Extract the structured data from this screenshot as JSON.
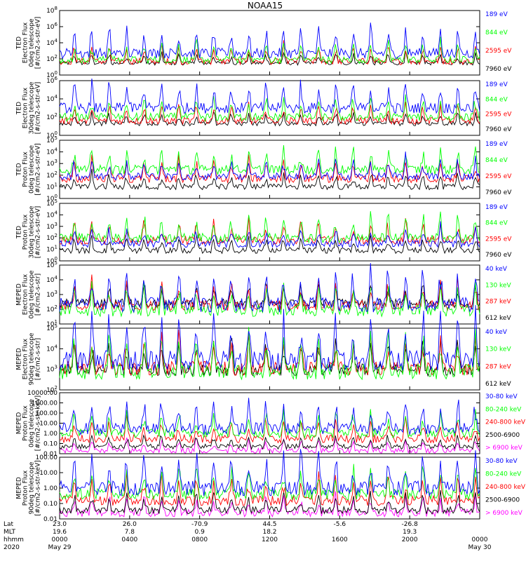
{
  "title": "NOAA15",
  "colors": {
    "blue": "#0000ff",
    "red": "#ff0000",
    "green": "#00ff00",
    "black": "#000000",
    "magenta": "#ff00ff"
  },
  "chart_data": [
    {
      "type": "line",
      "ylabel": [
        "TED",
        "Electron Flux",
        "0deg telescope",
        "[#/cm2-s-str-eV]"
      ],
      "ylim": [
        1,
        100000000
      ],
      "yscale": "log",
      "ytick_labels": [
        "10^8",
        "10^6",
        "10^4",
        "10^2",
        "10^0"
      ],
      "series": [
        {
          "name": "7960 eV",
          "color": "#000000",
          "baseline": 30,
          "level": 1.0
        },
        {
          "name": "2595 eV",
          "color": "#ff0000",
          "baseline": 50,
          "level": 1.6
        },
        {
          "name": "844 eV",
          "color": "#00ff00",
          "baseline": 80,
          "level": 1.8
        },
        {
          "name": "189 eV",
          "color": "#0000ff",
          "baseline": 500,
          "level": 2.6
        }
      ]
    },
    {
      "type": "line",
      "ylabel": [
        "TED",
        "Electron Flux",
        "30deg telescope",
        "[#/cm2-s-str-eV]"
      ],
      "ylim": [
        1,
        1000000
      ],
      "yscale": "log",
      "ytick_labels": [
        "10^6",
        "10^4",
        "10^2",
        "10^0"
      ],
      "series": [
        {
          "name": "7960 eV",
          "color": "#000000",
          "baseline": 20,
          "level": 1.0
        },
        {
          "name": "2595 eV",
          "color": "#ff0000",
          "baseline": 40,
          "level": 1.5
        },
        {
          "name": "844 eV",
          "color": "#00ff00",
          "baseline": 100,
          "level": 1.8
        },
        {
          "name": "189 eV",
          "color": "#0000ff",
          "baseline": 1000,
          "level": 2.4
        }
      ]
    },
    {
      "type": "line",
      "ylabel": [
        "TED",
        "Proton Flux",
        "0deg telescope",
        "[#/cm2-s-str-eV]"
      ],
      "ylim": [
        1,
        100000
      ],
      "yscale": "log",
      "ytick_labels": [
        "10^5",
        "10^4",
        "10^3",
        "10^2",
        "10^1",
        "10^0"
      ],
      "series": [
        {
          "name": "7960 eV",
          "color": "#000000",
          "baseline": 10,
          "level": 1.0
        },
        {
          "name": "2595 eV",
          "color": "#ff0000",
          "baseline": 50,
          "level": 1.4
        },
        {
          "name": "844 eV",
          "color": "#00ff00",
          "baseline": 300,
          "level": 1.6
        },
        {
          "name": "189 eV",
          "color": "#0000ff",
          "baseline": 80,
          "level": 1.3
        }
      ]
    },
    {
      "type": "line",
      "ylabel": [
        "TED",
        "Proton Flux",
        "30deg telescope",
        "[#/cm2-s-str-eV]"
      ],
      "ylim": [
        1,
        100000
      ],
      "yscale": "log",
      "ytick_labels": [
        "10^5",
        "10^4",
        "10^3",
        "10^2",
        "10^1",
        "10^0"
      ],
      "series": [
        {
          "name": "7960 eV",
          "color": "#000000",
          "baseline": 8,
          "level": 1.0
        },
        {
          "name": "2595 eV",
          "color": "#ff0000",
          "baseline": 60,
          "level": 1.4
        },
        {
          "name": "844 eV",
          "color": "#00ff00",
          "baseline": 100,
          "level": 1.6
        },
        {
          "name": "189 eV",
          "color": "#0000ff",
          "baseline": 30,
          "level": 1.2
        }
      ]
    },
    {
      "type": "line",
      "ylabel": [
        "MEPED",
        "Electron Flux",
        "0deg telescope",
        "[#/cm2-s-str]"
      ],
      "ylim": [
        10,
        100000
      ],
      "yscale": "log",
      "ytick_labels": [
        "10^5",
        "10^4",
        "10^3",
        "10^2",
        "10^1"
      ],
      "series": [
        {
          "name": "612 keV",
          "color": "#000000",
          "baseline": 250,
          "level": 1.2
        },
        {
          "name": "287 keV",
          "color": "#ff0000",
          "baseline": 180,
          "level": 1.4
        },
        {
          "name": "130 keV",
          "color": "#00ff00",
          "baseline": 80,
          "level": 1.6
        },
        {
          "name": "40 keV",
          "color": "#0000ff",
          "baseline": 200,
          "level": 2.0
        }
      ]
    },
    {
      "type": "line",
      "ylabel": [
        "MEPED",
        "Electron Flux",
        "90deg telescope",
        "[#/cm2-s-str]"
      ],
      "ylim": [
        10,
        100000
      ],
      "yscale": "log",
      "ytick_labels": [
        "10^5",
        "10^4",
        "10^3",
        "10^2"
      ],
      "series": [
        {
          "name": "612 keV",
          "color": "#000000",
          "baseline": 200,
          "level": 1.6
        },
        {
          "name": "287 keV",
          "color": "#ff0000",
          "baseline": 250,
          "level": 1.8
        },
        {
          "name": "130 keV",
          "color": "#00ff00",
          "baseline": 150,
          "level": 2.0
        },
        {
          "name": "40 keV",
          "color": "#0000ff",
          "baseline": 800,
          "level": 2.6
        }
      ]
    },
    {
      "type": "line",
      "ylabel": [
        "MEPED",
        "Proton Flux",
        "0deg telescope",
        "[#/cm2-s-str-keV]"
      ],
      "ylim": [
        0.01,
        10000
      ],
      "yscale": "log",
      "ytick_labels": [
        "10000.00",
        "1000.00",
        "100.00",
        "10.00",
        "1.00",
        "0.10",
        "0.01"
      ],
      "series": [
        {
          "name": "> 6900 keV",
          "color": "#ff00ff",
          "baseline": 0.02,
          "level": 1.0
        },
        {
          "name": "2500-6900",
          "color": "#000000",
          "baseline": 0.05,
          "level": 1.0
        },
        {
          "name": "240-800 keV",
          "color": "#ff0000",
          "baseline": 0.3,
          "level": 1.6
        },
        {
          "name": "80-240 keV",
          "color": "#00ff00",
          "baseline": 1.0,
          "level": 1.8
        },
        {
          "name": "30-80 keV",
          "color": "#0000ff",
          "baseline": 3.0,
          "level": 2.4
        }
      ]
    },
    {
      "type": "line",
      "ylabel": [
        "MEPED",
        "Proton Flux",
        "90deg telescope",
        "[#/cm2-s-str-keV]"
      ],
      "ylim": [
        0.01,
        1000
      ],
      "yscale": "log",
      "ytick_labels": [
        "100.00",
        "10.00",
        "1.00",
        "0.10",
        "0.01"
      ],
      "series": [
        {
          "name": "> 6900 keV",
          "color": "#ff00ff",
          "baseline": 0.03,
          "level": 1.2
        },
        {
          "name": "2500-6900",
          "color": "#000000",
          "baseline": 0.05,
          "level": 1.2
        },
        {
          "name": "240-800 keV",
          "color": "#ff0000",
          "baseline": 0.3,
          "level": 1.6
        },
        {
          "name": "80-240 keV",
          "color": "#00ff00",
          "baseline": 1.0,
          "level": 1.8
        },
        {
          "name": "30-80 keV",
          "color": "#0000ff",
          "baseline": 3.0,
          "level": 2.4
        }
      ]
    }
  ],
  "x_axis": {
    "row_labels": [
      "Lat",
      "MLT",
      "hhmm",
      "2020"
    ],
    "columns": [
      {
        "lat": "23.0",
        "mlt": "19.6",
        "hhmm": "0000",
        "date": "May 29"
      },
      {
        "lat": "26.0",
        "mlt": "7.8",
        "hhmm": "0400",
        "date": ""
      },
      {
        "lat": "-70.9",
        "mlt": "0.9",
        "hhmm": "0800",
        "date": ""
      },
      {
        "lat": "44.5",
        "mlt": "18.2",
        "hhmm": "1200",
        "date": ""
      },
      {
        "lat": "-5.6",
        "mlt": "",
        "hhmm": "1600",
        "date": ""
      },
      {
        "lat": "-26.8",
        "mlt": "19.3",
        "hhmm": "2000",
        "date": ""
      },
      {
        "lat": "",
        "mlt": "",
        "hhmm": "0000",
        "date": "May 30"
      }
    ]
  }
}
